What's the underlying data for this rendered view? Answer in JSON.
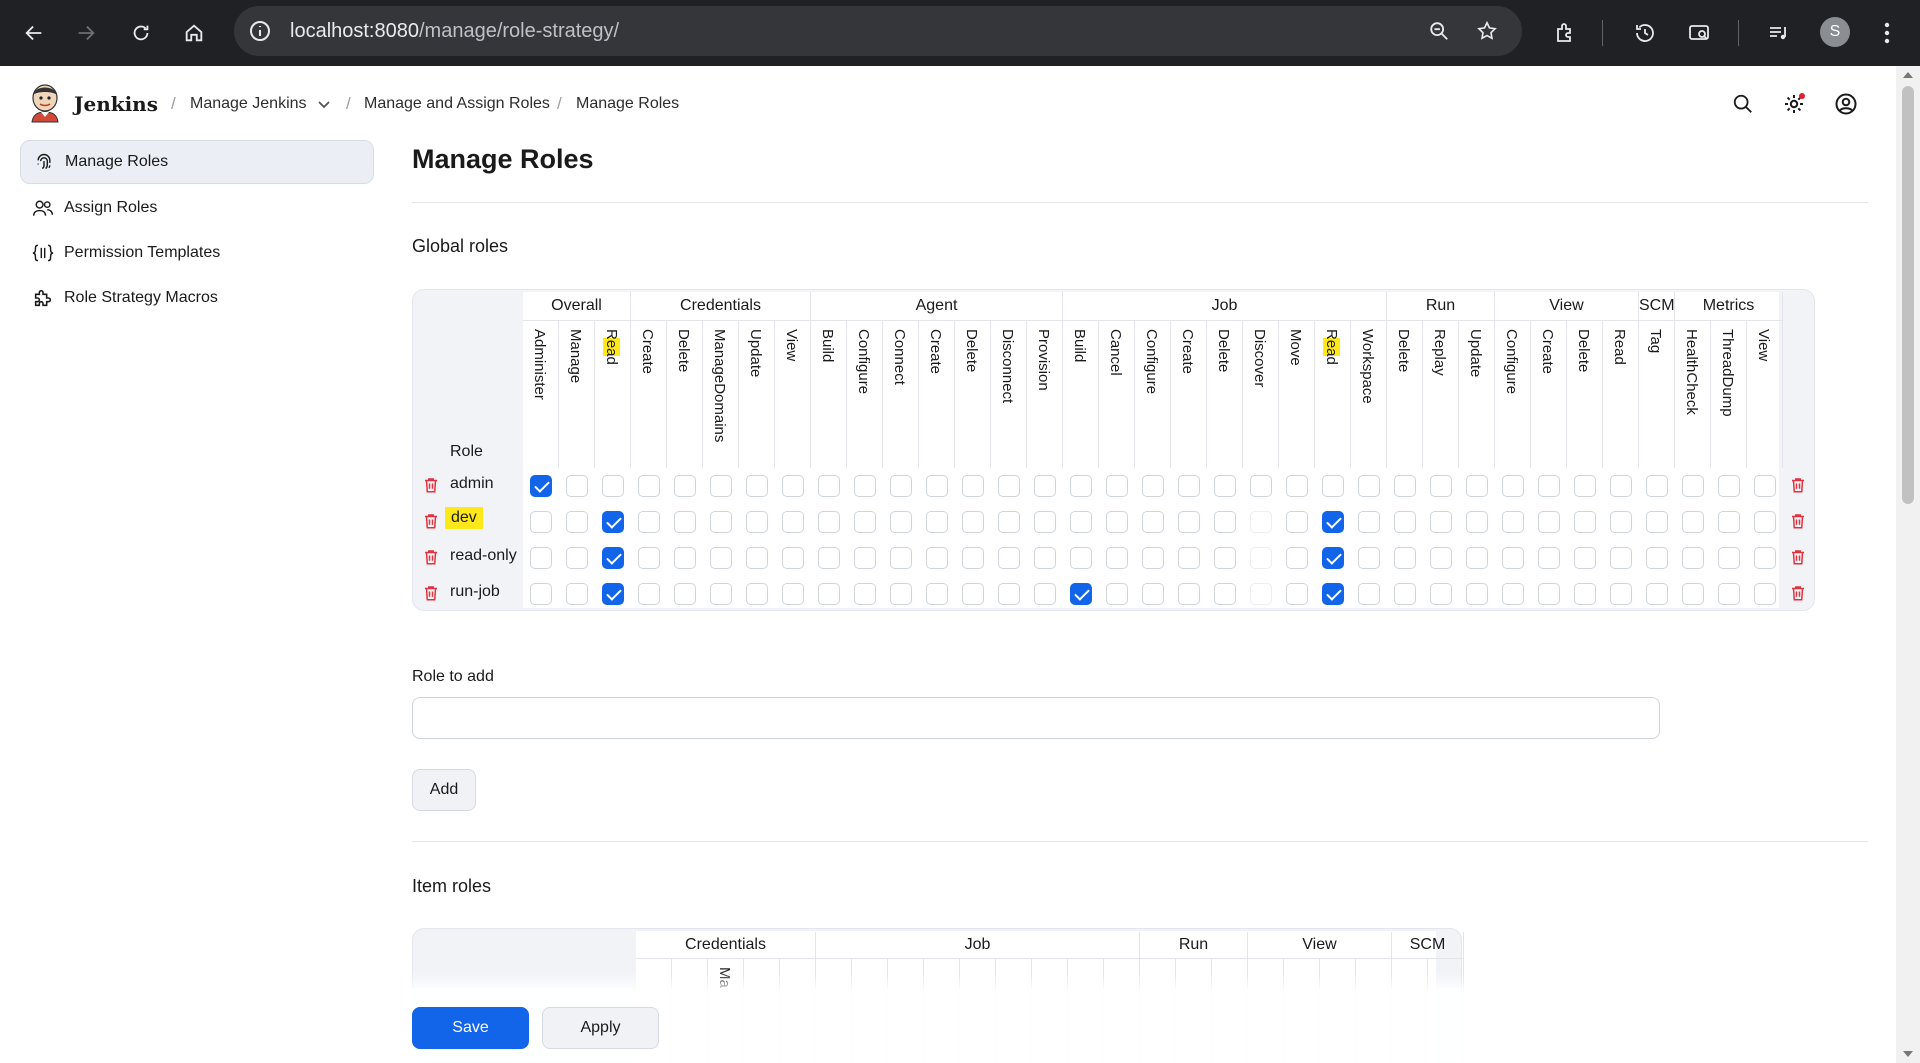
{
  "browser": {
    "url_host": "localhost:8080",
    "url_path": "/manage/role-strategy/",
    "profile_initial": "S"
  },
  "header": {
    "brand": "Jenkins",
    "breadcrumbs": [
      "Manage Jenkins",
      "Manage and Assign Roles",
      "Manage Roles"
    ]
  },
  "sidebar": {
    "items": [
      {
        "label": "Manage Roles",
        "icon": "fingerprint-icon"
      },
      {
        "label": "Assign Roles",
        "icon": "users-icon"
      },
      {
        "label": "Permission Templates",
        "icon": "braces-icon"
      },
      {
        "label": "Role Strategy Macros",
        "icon": "puzzle-icon"
      }
    ]
  },
  "main": {
    "title": "Manage Roles",
    "global_roles_title": "Global roles",
    "role_column_label": "Role",
    "groups": [
      {
        "name": "Overall",
        "perms": [
          "Administer",
          "Manage",
          "Read"
        ]
      },
      {
        "name": "Credentials",
        "perms": [
          "Create",
          "Delete",
          "ManageDomains",
          "Update",
          "View"
        ]
      },
      {
        "name": "Agent",
        "perms": [
          "Build",
          "Configure",
          "Connect",
          "Create",
          "Delete",
          "Disconnect",
          "Provision"
        ]
      },
      {
        "name": "Job",
        "perms": [
          "Build",
          "Cancel",
          "Configure",
          "Create",
          "Delete",
          "Discover",
          "Move",
          "Read",
          "Workspace"
        ]
      },
      {
        "name": "Run",
        "perms": [
          "Delete",
          "Replay",
          "Update"
        ]
      },
      {
        "name": "View",
        "perms": [
          "Configure",
          "Create",
          "Delete",
          "Read"
        ]
      },
      {
        "name": "SCM",
        "perms": [
          "Tag"
        ]
      },
      {
        "name": "Metrics",
        "perms": [
          "HealthCheck",
          "ThreadDump",
          "View"
        ]
      }
    ],
    "highlighted_perm_columns": [
      2,
      22
    ],
    "roles": [
      {
        "name": "admin",
        "checked": [
          0
        ],
        "highlight": false
      },
      {
        "name": "dev",
        "checked": [
          2,
          22
        ],
        "highlight": true
      },
      {
        "name": "read-only",
        "checked": [
          2,
          22
        ],
        "highlight": false
      },
      {
        "name": "run-job",
        "checked": [
          2,
          15,
          22
        ],
        "highlight": false
      }
    ],
    "role_to_add_label": "Role to add",
    "role_to_add_value": "",
    "add_label": "Add",
    "item_roles_title": "Item roles",
    "item_groups": [
      "Credentials",
      "Job",
      "Run",
      "View",
      "SCM"
    ],
    "item_partial_header": "Ma"
  },
  "footer": {
    "save_label": "Save",
    "apply_label": "Apply"
  }
}
